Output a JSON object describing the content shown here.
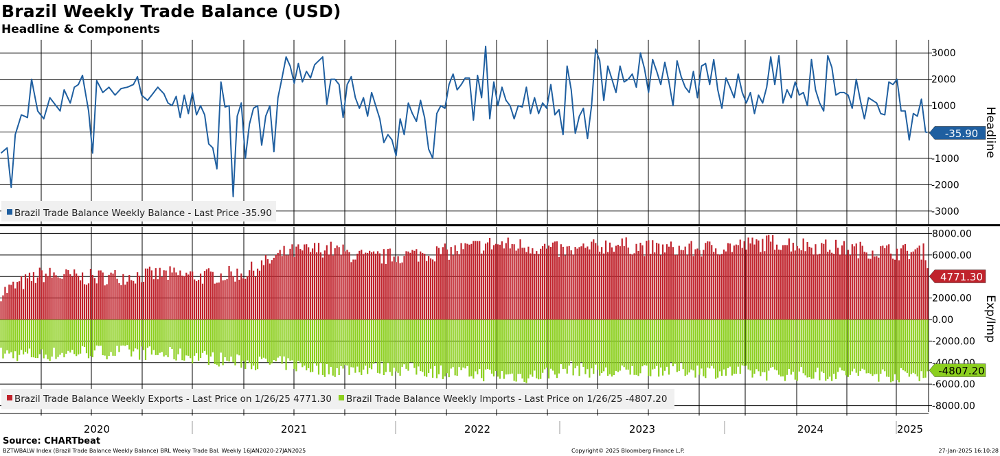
{
  "header": {
    "title": "Brazil Weekly Trade Balance (USD)",
    "subtitle": "Headline & Components"
  },
  "colors": {
    "headline": "#1f5fa0",
    "exports": "#c0232c",
    "imports": "#8ccf1e",
    "grid": "#000000"
  },
  "chart_data": [
    {
      "type": "line",
      "name": "headline",
      "ylabel": "Headline",
      "ylim": [
        -3500,
        3500
      ],
      "yticks": [
        3000,
        2000,
        1000,
        0,
        -1000,
        -2000,
        -3000
      ],
      "ytick_labels": [
        "3000",
        "2000",
        "1000",
        "",
        "-1000",
        "-2000",
        "-3000"
      ],
      "legend": "Brazil Trade Balance Weekly Balance - Last Price -35.90",
      "last_value": -35.9,
      "last_label": "-35.90",
      "x_start": "16JAN2020",
      "x_end": "27JAN2025",
      "anchors": [
        [
          0,
          -800
        ],
        [
          3,
          -600
        ],
        [
          5,
          -2100
        ],
        [
          7,
          -100
        ],
        [
          10,
          650
        ],
        [
          13,
          550
        ],
        [
          15,
          2000
        ],
        [
          18,
          800
        ],
        [
          21,
          500
        ],
        [
          24,
          1300
        ],
        [
          27,
          1000
        ],
        [
          29,
          800
        ],
        [
          31,
          1600
        ],
        [
          34,
          1100
        ],
        [
          36,
          1700
        ],
        [
          38,
          1800
        ],
        [
          40,
          2150
        ],
        [
          43,
          800
        ],
        [
          45,
          -800
        ],
        [
          47,
          1950
        ],
        [
          50,
          1500
        ],
        [
          53,
          1700
        ],
        [
          56,
          1400
        ],
        [
          59,
          1650
        ],
        [
          62,
          1700
        ],
        [
          65,
          1800
        ],
        [
          67,
          2100
        ],
        [
          69,
          1400
        ],
        [
          72,
          1200
        ],
        [
          75,
          1500
        ],
        [
          77,
          1700
        ],
        [
          80,
          1450
        ],
        [
          82,
          1100
        ],
        [
          84,
          1000
        ],
        [
          86,
          1350
        ],
        [
          88,
          550
        ],
        [
          90,
          1400
        ],
        [
          92,
          700
        ],
        [
          94,
          1500
        ],
        [
          96,
          650
        ],
        [
          98,
          1000
        ],
        [
          100,
          650
        ],
        [
          102,
          -450
        ],
        [
          104,
          -600
        ],
        [
          106,
          -1400
        ],
        [
          108,
          1900
        ],
        [
          110,
          950
        ],
        [
          112,
          1000
        ],
        [
          114,
          -2450
        ],
        [
          116,
          600
        ],
        [
          118,
          1100
        ],
        [
          120,
          -1000
        ],
        [
          122,
          300
        ],
        [
          124,
          900
        ],
        [
          126,
          1000
        ],
        [
          128,
          -500
        ],
        [
          130,
          600
        ],
        [
          132,
          1000
        ],
        [
          134,
          -750
        ],
        [
          136,
          1300
        ],
        [
          138,
          2050
        ],
        [
          140,
          2850
        ],
        [
          142,
          2500
        ],
        [
          144,
          1850
        ],
        [
          146,
          2600
        ],
        [
          148,
          1900
        ],
        [
          150,
          2300
        ],
        [
          152,
          2050
        ],
        [
          154,
          2550
        ],
        [
          156,
          2700
        ],
        [
          158,
          2850
        ],
        [
          160,
          1050
        ],
        [
          162,
          2000
        ],
        [
          164,
          2000
        ],
        [
          166,
          1800
        ],
        [
          168,
          550
        ],
        [
          170,
          1800
        ],
        [
          172,
          2100
        ],
        [
          174,
          1300
        ],
        [
          176,
          900
        ],
        [
          178,
          1300
        ],
        [
          180,
          600
        ],
        [
          182,
          1500
        ],
        [
          184,
          1000
        ],
        [
          186,
          500
        ],
        [
          188,
          -400
        ],
        [
          190,
          -100
        ],
        [
          192,
          -300
        ],
        [
          194,
          -900
        ],
        [
          196,
          500
        ],
        [
          198,
          -100
        ],
        [
          200,
          1100
        ],
        [
          202,
          700
        ],
        [
          204,
          400
        ],
        [
          206,
          1200
        ],
        [
          208,
          550
        ],
        [
          210,
          -650
        ],
        [
          212,
          -1000
        ],
        [
          214,
          700
        ],
        [
          216,
          1000
        ],
        [
          218,
          900
        ],
        [
          220,
          1800
        ],
        [
          222,
          2200
        ],
        [
          224,
          1600
        ],
        [
          226,
          1800
        ],
        [
          228,
          2050
        ],
        [
          230,
          2050
        ],
        [
          232,
          450
        ],
        [
          234,
          2150
        ],
        [
          236,
          1300
        ],
        [
          238,
          3250
        ],
        [
          240,
          500
        ],
        [
          242,
          1900
        ],
        [
          244,
          1000
        ],
        [
          246,
          1700
        ],
        [
          248,
          1200
        ],
        [
          250,
          1000
        ],
        [
          252,
          500
        ],
        [
          254,
          1000
        ],
        [
          256,
          950
        ],
        [
          258,
          1700
        ],
        [
          260,
          700
        ],
        [
          262,
          1300
        ],
        [
          264,
          700
        ],
        [
          266,
          1100
        ],
        [
          268,
          900
        ],
        [
          270,
          1800
        ],
        [
          272,
          650
        ],
        [
          274,
          850
        ],
        [
          276,
          -100
        ],
        [
          278,
          2500
        ],
        [
          280,
          1600
        ],
        [
          282,
          -50
        ],
        [
          284,
          600
        ],
        [
          286,
          900
        ],
        [
          288,
          -250
        ],
        [
          290,
          1000
        ],
        [
          292,
          3150
        ],
        [
          294,
          2700
        ],
        [
          296,
          1200
        ],
        [
          298,
          2500
        ],
        [
          300,
          2000
        ],
        [
          302,
          1500
        ],
        [
          304,
          2500
        ],
        [
          306,
          1900
        ],
        [
          308,
          2000
        ],
        [
          310,
          2200
        ],
        [
          312,
          1700
        ],
        [
          314,
          3000
        ],
        [
          316,
          2400
        ],
        [
          318,
          1500
        ],
        [
          320,
          2750
        ],
        [
          322,
          2300
        ],
        [
          324,
          1800
        ],
        [
          326,
          2650
        ],
        [
          328,
          1900
        ],
        [
          330,
          1000
        ],
        [
          332,
          2700
        ],
        [
          334,
          2100
        ],
        [
          336,
          1700
        ],
        [
          338,
          1500
        ],
        [
          340,
          2300
        ],
        [
          342,
          1300
        ],
        [
          344,
          2500
        ],
        [
          346,
          2600
        ],
        [
          348,
          1800
        ],
        [
          350,
          2750
        ],
        [
          352,
          1600
        ],
        [
          354,
          900
        ],
        [
          356,
          2050
        ],
        [
          358,
          1700
        ],
        [
          360,
          1300
        ],
        [
          362,
          2200
        ],
        [
          364,
          1500
        ],
        [
          366,
          1100
        ],
        [
          368,
          1500
        ],
        [
          370,
          700
        ],
        [
          372,
          1400
        ],
        [
          374,
          1100
        ],
        [
          376,
          1700
        ],
        [
          378,
          2850
        ],
        [
          380,
          1800
        ],
        [
          382,
          2900
        ],
        [
          384,
          1100
        ],
        [
          386,
          1600
        ],
        [
          388,
          1300
        ],
        [
          390,
          1900
        ],
        [
          392,
          1400
        ],
        [
          394,
          1500
        ],
        [
          396,
          1000
        ],
        [
          398,
          2750
        ],
        [
          400,
          1600
        ],
        [
          402,
          1100
        ],
        [
          404,
          800
        ],
        [
          406,
          2900
        ],
        [
          408,
          2450
        ],
        [
          410,
          1400
        ],
        [
          412,
          1500
        ],
        [
          414,
          1500
        ],
        [
          416,
          1400
        ],
        [
          418,
          900
        ],
        [
          420,
          2000
        ],
        [
          422,
          1200
        ],
        [
          424,
          500
        ],
        [
          426,
          1300
        ],
        [
          428,
          1200
        ],
        [
          430,
          1100
        ],
        [
          432,
          700
        ],
        [
          434,
          650
        ],
        [
          436,
          1900
        ],
        [
          438,
          1800
        ],
        [
          440,
          2000
        ],
        [
          442,
          800
        ],
        [
          444,
          800
        ],
        [
          446,
          -300
        ],
        [
          448,
          700
        ],
        [
          450,
          600
        ],
        [
          452,
          1250
        ],
        [
          454,
          0
        ],
        [
          456,
          -36
        ]
      ]
    },
    {
      "type": "bar",
      "name": "components",
      "ylabel": "Exp/Imp",
      "ylim": [
        -8600,
        8600
      ],
      "yticks": [
        8000,
        6000,
        4000,
        2000,
        0,
        -2000,
        -4000,
        -6000,
        -8000
      ],
      "ytick_labels": [
        "8000.00",
        "6000.00",
        "4000.00",
        "2000.00",
        "0.00",
        "-2000.00",
        "-4000.00",
        "-6000.00",
        "-8000.00"
      ],
      "series": [
        {
          "name": "Brazil Trade Balance Weekly Exports - Last Price on 1/26/25 4771.30",
          "last_label": "4771.30",
          "last_value": 4771.3
        },
        {
          "name": "Brazil Trade Balance Weekly Imports - Last Price on 1/26/25 -4807.20",
          "last_label": "-4807.20",
          "last_value": -4807.2
        }
      ],
      "exports_anchors": [
        [
          0,
          2500
        ],
        [
          20,
          4200
        ],
        [
          40,
          3900
        ],
        [
          60,
          4000
        ],
        [
          80,
          4200
        ],
        [
          100,
          4000
        ],
        [
          120,
          4300
        ],
        [
          140,
          6200
        ],
        [
          160,
          6600
        ],
        [
          180,
          5700
        ],
        [
          200,
          6000
        ],
        [
          220,
          6300
        ],
        [
          240,
          7000
        ],
        [
          260,
          6800
        ],
        [
          280,
          6300
        ],
        [
          300,
          7000
        ],
        [
          320,
          6600
        ],
        [
          340,
          6500
        ],
        [
          360,
          6800
        ],
        [
          380,
          7200
        ],
        [
          400,
          6800
        ],
        [
          420,
          6500
        ],
        [
          440,
          6300
        ],
        [
          454,
          6300
        ],
        [
          456,
          4771
        ]
      ],
      "imports_anchors": [
        [
          0,
          -3200
        ],
        [
          20,
          -3300
        ],
        [
          40,
          -3000
        ],
        [
          60,
          -3000
        ],
        [
          80,
          -3200
        ],
        [
          100,
          -3500
        ],
        [
          120,
          -4000
        ],
        [
          140,
          -4100
        ],
        [
          160,
          -4700
        ],
        [
          180,
          -4500
        ],
        [
          200,
          -4600
        ],
        [
          220,
          -4900
        ],
        [
          240,
          -5100
        ],
        [
          260,
          -5300
        ],
        [
          280,
          -4500
        ],
        [
          300,
          -5000
        ],
        [
          320,
          -4600
        ],
        [
          340,
          -4700
        ],
        [
          360,
          -4900
        ],
        [
          380,
          -5000
        ],
        [
          400,
          -5100
        ],
        [
          420,
          -5000
        ],
        [
          440,
          -5200
        ],
        [
          454,
          -5000
        ],
        [
          456,
          -4807
        ]
      ]
    }
  ],
  "x_axis": {
    "years": [
      "2020",
      "2021",
      "2022",
      "2023",
      "2024",
      "2025"
    ]
  },
  "footer": {
    "source": "Source: CHARTbeat",
    "left": "BZTWBALW Index (Brazil Trade Balance Weekly Balance) BRL Weeky Trade Bal. Weekly 16JAN2020-27JAN2025",
    "middle": "Copyright© 2025 Bloomberg Finance L.P.",
    "right": "27-Jan-2025 16:10:28"
  }
}
